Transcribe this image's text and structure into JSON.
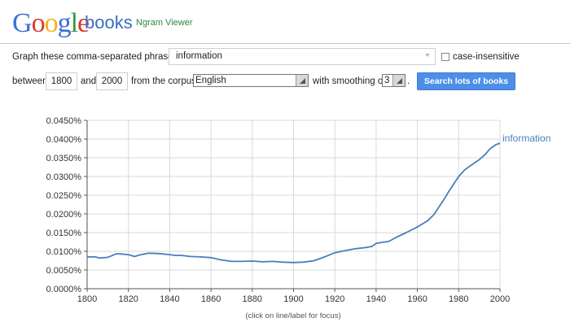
{
  "header": {
    "logo_letters": [
      {
        "ch": "G",
        "color": "#3b6fd9"
      },
      {
        "ch": "o",
        "color": "#d9392a"
      },
      {
        "ch": "o",
        "color": "#f2b21b"
      },
      {
        "ch": "g",
        "color": "#3b6fd9"
      },
      {
        "ch": "l",
        "color": "#2f9a45"
      },
      {
        "ch": "e",
        "color": "#d9392a"
      }
    ],
    "logo_books": "books",
    "app_name": "Ngram Viewer"
  },
  "form": {
    "phrases_label": "Graph these comma-separated phrases:",
    "phrases_value": "information",
    "case_label": "case-insensitive",
    "between_label": "between",
    "start_year": "1800",
    "and_label": "and",
    "end_year": "2000",
    "corpus_label": "from the corpus",
    "corpus_value": "English",
    "smoothing_label": "with smoothing of",
    "smoothing_value": "3",
    "period": ".",
    "search_button": "Search lots of books"
  },
  "footer_note": "(click on line/label for focus)",
  "colors": {
    "line": "#4a7ebb",
    "button": "#4d8fe8",
    "grid": "#d9d9d9"
  },
  "chart_data": {
    "type": "line",
    "title": "",
    "xlabel": "",
    "ylabel": "",
    "xlim": [
      1800,
      2000
    ],
    "ylim": [
      0,
      0.045
    ],
    "x_ticks": [
      1800,
      1820,
      1840,
      1860,
      1880,
      1900,
      1920,
      1940,
      1960,
      1980,
      2000
    ],
    "y_ticks": [
      "0.0000%",
      "0.0050%",
      "0.0100%",
      "0.0150%",
      "0.0200%",
      "0.0250%",
      "0.0300%",
      "0.0350%",
      "0.0400%",
      "0.0450%"
    ],
    "y_tick_values": [
      0,
      0.005,
      0.01,
      0.015,
      0.02,
      0.025,
      0.03,
      0.035,
      0.04,
      0.045
    ],
    "grid": true,
    "legend": "line-end label",
    "series": [
      {
        "name": "information",
        "x": [
          1800,
          1804,
          1806,
          1810,
          1814,
          1816,
          1820,
          1823,
          1826,
          1830,
          1835,
          1840,
          1843,
          1846,
          1850,
          1855,
          1860,
          1865,
          1870,
          1875,
          1880,
          1885,
          1890,
          1895,
          1900,
          1905,
          1910,
          1915,
          1920,
          1925,
          1930,
          1935,
          1938,
          1940,
          1943,
          1946,
          1950,
          1955,
          1960,
          1965,
          1968,
          1970,
          1973,
          1975,
          1978,
          1980,
          1983,
          1986,
          1990,
          1993,
          1995,
          1998,
          2000
        ],
        "values": [
          0.0085,
          0.0085,
          0.0082,
          0.0084,
          0.0093,
          0.0093,
          0.0091,
          0.0086,
          0.0091,
          0.0095,
          0.0094,
          0.0091,
          0.0089,
          0.0089,
          0.0086,
          0.0085,
          0.0083,
          0.0077,
          0.0073,
          0.0073,
          0.0074,
          0.0072,
          0.0073,
          0.0071,
          0.007,
          0.0071,
          0.0075,
          0.0085,
          0.0096,
          0.0102,
          0.0107,
          0.011,
          0.0113,
          0.0121,
          0.0124,
          0.0126,
          0.0138,
          0.0151,
          0.0165,
          0.0182,
          0.0198,
          0.0215,
          0.024,
          0.0258,
          0.0283,
          0.03,
          0.0318,
          0.033,
          0.0345,
          0.036,
          0.0373,
          0.0385,
          0.0389
        ]
      }
    ]
  }
}
